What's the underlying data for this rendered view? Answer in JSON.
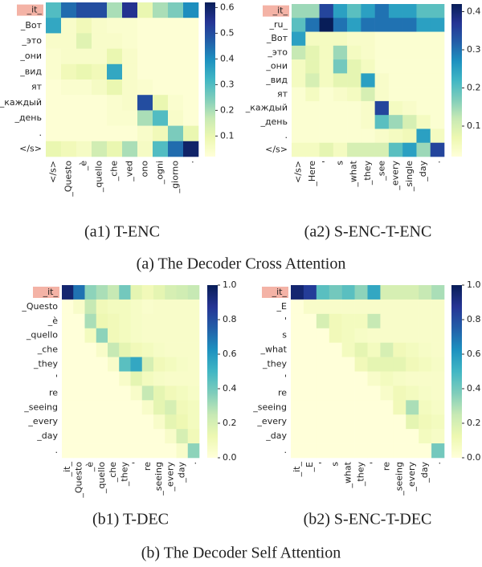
{
  "figure_captions": [
    "(a) The Decoder Cross Attention",
    "(b) The Decoder Self Attention"
  ],
  "chart_data": [
    {
      "type": "heatmap",
      "title": "(a1) T-ENC",
      "colormap": "YlGnBu",
      "x": [
        "</s>",
        "_Questo",
        "_è",
        "_quello",
        "_che",
        "_ved",
        "ono",
        "_ogni",
        "_giorno",
        "."
      ],
      "y": [
        "_it_",
        "_Вот",
        "_это",
        "_они",
        "_вид",
        "ят",
        "_каждый",
        "_день",
        ".",
        "</s>"
      ],
      "values": [
        [
          0.3,
          0.45,
          0.5,
          0.5,
          0.2,
          0.55,
          0.1,
          0.2,
          0.25,
          0.4
        ],
        [
          0.35,
          0.05,
          0.08,
          0.05,
          0.04,
          0.04,
          0.03,
          0.03,
          0.03,
          0.03
        ],
        [
          0.05,
          0.05,
          0.12,
          0.05,
          0.05,
          0.04,
          0.03,
          0.03,
          0.03,
          0.03
        ],
        [
          0.04,
          0.05,
          0.05,
          0.05,
          0.1,
          0.05,
          0.03,
          0.03,
          0.03,
          0.03
        ],
        [
          0.04,
          0.08,
          0.1,
          0.08,
          0.35,
          0.05,
          0.03,
          0.03,
          0.03,
          0.03
        ],
        [
          0.03,
          0.04,
          0.04,
          0.06,
          0.1,
          0.05,
          0.04,
          0.03,
          0.03,
          0.03
        ],
        [
          0.03,
          0.03,
          0.03,
          0.03,
          0.04,
          0.05,
          0.5,
          0.1,
          0.04,
          0.03
        ],
        [
          0.03,
          0.03,
          0.03,
          0.03,
          0.04,
          0.04,
          0.2,
          0.3,
          0.05,
          0.03
        ],
        [
          0.03,
          0.03,
          0.03,
          0.03,
          0.03,
          0.03,
          0.05,
          0.08,
          0.25,
          0.1
        ],
        [
          0.1,
          0.08,
          0.06,
          0.15,
          0.1,
          0.2,
          0.06,
          0.3,
          0.45,
          0.6
        ]
      ],
      "zlim": [
        0.02,
        0.62
      ],
      "zticks": [
        0.1,
        0.2,
        0.3,
        0.4,
        0.5,
        0.6
      ]
    },
    {
      "type": "heatmap",
      "title": "(a2) S-ENC-T-ENC",
      "colormap": "YlGnBu",
      "x": [
        "</s>",
        "_Here",
        "'",
        "s",
        "_what",
        "_they",
        "_see",
        "_every",
        "_single",
        "_day",
        "."
      ],
      "y": [
        "_it_",
        "_ru_",
        "_Вот",
        "_это",
        "_они",
        "_вид",
        "ят",
        "_каждый",
        "_день",
        ".",
        "</s>"
      ],
      "values": [
        [
          0.15,
          0.15,
          0.35,
          0.25,
          0.2,
          0.25,
          0.3,
          0.25,
          0.25,
          0.2,
          0.2
        ],
        [
          0.2,
          0.3,
          0.42,
          0.3,
          0.25,
          0.3,
          0.3,
          0.3,
          0.3,
          0.25,
          0.25
        ],
        [
          0.25,
          0.05,
          0.05,
          0.05,
          0.04,
          0.04,
          0.03,
          0.03,
          0.03,
          0.03,
          0.03
        ],
        [
          0.12,
          0.08,
          0.05,
          0.15,
          0.05,
          0.04,
          0.03,
          0.03,
          0.03,
          0.03,
          0.03
        ],
        [
          0.05,
          0.08,
          0.05,
          0.18,
          0.08,
          0.05,
          0.03,
          0.03,
          0.03,
          0.03,
          0.03
        ],
        [
          0.05,
          0.1,
          0.05,
          0.08,
          0.08,
          0.25,
          0.04,
          0.03,
          0.03,
          0.03,
          0.03
        ],
        [
          0.03,
          0.05,
          0.03,
          0.04,
          0.05,
          0.1,
          0.04,
          0.03,
          0.03,
          0.03,
          0.03
        ],
        [
          0.03,
          0.03,
          0.03,
          0.03,
          0.03,
          0.04,
          0.35,
          0.05,
          0.04,
          0.03,
          0.03
        ],
        [
          0.03,
          0.03,
          0.03,
          0.03,
          0.03,
          0.04,
          0.2,
          0.15,
          0.1,
          0.05,
          0.03
        ],
        [
          0.03,
          0.03,
          0.03,
          0.03,
          0.03,
          0.03,
          0.04,
          0.05,
          0.06,
          0.25,
          0.05
        ],
        [
          0.05,
          0.05,
          0.08,
          0.05,
          0.1,
          0.1,
          0.1,
          0.2,
          0.25,
          0.15,
          0.35
        ]
      ],
      "zlim": [
        0.02,
        0.42
      ],
      "zticks": [
        0.1,
        0.2,
        0.3,
        0.4
      ]
    },
    {
      "type": "heatmap",
      "title": "(b1) T-DEC",
      "colormap": "YlGnBu",
      "x": [
        "_it_",
        "_Questo",
        "_è",
        "_quello",
        "_che",
        "_they",
        "'",
        "re",
        "_seeing",
        "_every",
        "_day",
        "."
      ],
      "y": [
        "_it_",
        "_Questo",
        "_è",
        "_quello",
        "_che",
        "_they",
        "'",
        "re",
        "_seeing",
        "_every",
        "_day",
        "."
      ],
      "values": [
        [
          0.95,
          0.7,
          0.35,
          0.3,
          0.25,
          0.4,
          0.15,
          0.1,
          0.15,
          0.2,
          0.22,
          0.25
        ],
        [
          0,
          0.05,
          0.25,
          0.1,
          0.08,
          0.08,
          0.06,
          0.04,
          0.05,
          0.05,
          0.05,
          0.05
        ],
        [
          0,
          0,
          0.3,
          0.12,
          0.1,
          0.08,
          0.06,
          0.05,
          0.05,
          0.05,
          0.05,
          0.05
        ],
        [
          0,
          0,
          0.08,
          0.35,
          0.1,
          0.08,
          0.06,
          0.05,
          0.05,
          0.05,
          0.05,
          0.05
        ],
        [
          0,
          0,
          0,
          0.05,
          0.25,
          0.15,
          0.1,
          0.08,
          0.06,
          0.05,
          0.05,
          0.05
        ],
        [
          0,
          0,
          0,
          0,
          0.05,
          0.45,
          0.55,
          0.2,
          0.1,
          0.08,
          0.06,
          0.05
        ],
        [
          0,
          0,
          0,
          0,
          0,
          0.05,
          0.15,
          0.08,
          0.06,
          0.05,
          0.05,
          0.05
        ],
        [
          0,
          0,
          0,
          0,
          0,
          0,
          0.05,
          0.25,
          0.15,
          0.1,
          0.08,
          0.06
        ],
        [
          0,
          0,
          0,
          0,
          0,
          0,
          0,
          0.05,
          0.15,
          0.2,
          0.1,
          0.08
        ],
        [
          0,
          0,
          0,
          0,
          0,
          0,
          0,
          0,
          0.05,
          0.15,
          0.12,
          0.08
        ],
        [
          0,
          0,
          0,
          0,
          0,
          0,
          0,
          0,
          0,
          0.05,
          0.2,
          0.1
        ],
        [
          0,
          0,
          0,
          0,
          0,
          0,
          0,
          0,
          0,
          0,
          0.05,
          0.35
        ]
      ],
      "zlim": [
        0,
        1
      ],
      "zticks": [
        {
          "value": 0,
          "label": "0.0"
        },
        0.2,
        0.4,
        0.6,
        0.8,
        {
          "value": 1,
          "label": "1.0"
        }
      ]
    },
    {
      "type": "heatmap",
      "title": "(b2) S-ENC-T-DEC",
      "colormap": "YlGnBu",
      "x": [
        "_it_",
        "_E",
        "'",
        "s",
        "_what",
        "_they",
        "'",
        "re",
        "_seeing",
        "_every",
        "_day",
        "."
      ],
      "y": [
        "_it_",
        "_E",
        "'",
        "s",
        "_what",
        "_they",
        "'",
        "re",
        "_seeing",
        "_every",
        "_day",
        "."
      ],
      "values": [
        [
          0.95,
          0.85,
          0.45,
          0.4,
          0.45,
          0.35,
          0.55,
          0.2,
          0.2,
          0.2,
          0.25,
          0.3
        ],
        [
          0,
          0.05,
          0.05,
          0.05,
          0.05,
          0.05,
          0.05,
          0.05,
          0.05,
          0.05,
          0.05,
          0.05
        ],
        [
          0,
          0,
          0.2,
          0.1,
          0.08,
          0.08,
          0.25,
          0.05,
          0.05,
          0.05,
          0.05,
          0.05
        ],
        [
          0,
          0,
          0,
          0.1,
          0.08,
          0.06,
          0.05,
          0.05,
          0.05,
          0.05,
          0.05,
          0.05
        ],
        [
          0,
          0,
          0,
          0,
          0.08,
          0.15,
          0.08,
          0.2,
          0.1,
          0.08,
          0.06,
          0.05
        ],
        [
          0,
          0,
          0,
          0,
          0,
          0.1,
          0.15,
          0.15,
          0.15,
          0.1,
          0.08,
          0.06
        ],
        [
          0,
          0,
          0,
          0,
          0,
          0,
          0.05,
          0.08,
          0.06,
          0.05,
          0.05,
          0.05
        ],
        [
          0,
          0,
          0,
          0,
          0,
          0,
          0,
          0.05,
          0.1,
          0.08,
          0.06,
          0.05
        ],
        [
          0,
          0,
          0,
          0,
          0,
          0,
          0,
          0,
          0.1,
          0.3,
          0.08,
          0.06
        ],
        [
          0,
          0,
          0,
          0,
          0,
          0,
          0,
          0,
          0,
          0.15,
          0.1,
          0.08
        ],
        [
          0,
          0,
          0,
          0,
          0,
          0,
          0,
          0,
          0,
          0,
          0.08,
          0.06
        ],
        [
          0,
          0,
          0,
          0,
          0,
          0,
          0,
          0,
          0,
          0,
          0,
          0.4
        ]
      ],
      "zlim": [
        0,
        1
      ],
      "zticks": [
        {
          "value": 0,
          "label": "0.0"
        },
        0.2,
        0.4,
        0.6,
        0.8,
        {
          "value": 1,
          "label": "1.0"
        }
      ]
    }
  ]
}
